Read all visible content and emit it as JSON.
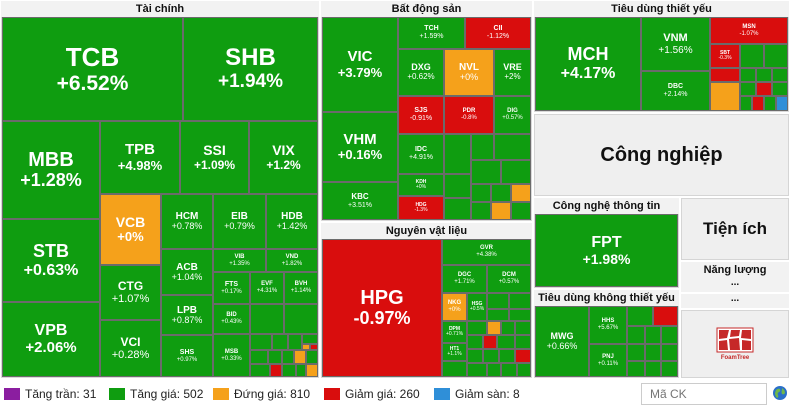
{
  "sectors": {
    "finance": {
      "title": "Tài chính",
      "tiles": [
        {
          "sym": "TCB",
          "chg": "+6.52%"
        },
        {
          "sym": "SHB",
          "chg": "+1.94%"
        },
        {
          "sym": "MBB",
          "chg": "+1.28%"
        },
        {
          "sym": "TPB",
          "chg": "+4.98%"
        },
        {
          "sym": "SSI",
          "chg": "+1.09%"
        },
        {
          "sym": "VIX",
          "chg": "+1.2%"
        },
        {
          "sym": "STB",
          "chg": "+0.63%"
        },
        {
          "sym": "VCB",
          "chg": "+0%"
        },
        {
          "sym": "HCM",
          "chg": "+0.78%"
        },
        {
          "sym": "EIB",
          "chg": "+0.79%"
        },
        {
          "sym": "HDB",
          "chg": "+1.42%"
        },
        {
          "sym": "CTG",
          "chg": "+1.07%"
        },
        {
          "sym": "ACB",
          "chg": "+1.04%"
        },
        {
          "sym": "VIB",
          "chg": "+1.35%"
        },
        {
          "sym": "VND",
          "chg": "+1.82%"
        },
        {
          "sym": "FTS",
          "chg": "+0.17%"
        },
        {
          "sym": "EVF",
          "chg": "+4.31%"
        },
        {
          "sym": "BVH",
          "chg": "+1.14%"
        },
        {
          "sym": "VPB",
          "chg": "+2.06%"
        },
        {
          "sym": "LPB",
          "chg": "+0.87%"
        },
        {
          "sym": "BID",
          "chg": "+0.43%"
        },
        {
          "sym": "VCI",
          "chg": "+0.28%"
        },
        {
          "sym": "SHS",
          "chg": "+0.97%"
        },
        {
          "sym": "MSB",
          "chg": "+0.33%"
        }
      ]
    },
    "real_estate": {
      "title": "Bất động sản",
      "tiles": [
        {
          "sym": "VIC",
          "chg": "+3.79%"
        },
        {
          "sym": "TCH",
          "chg": "+1.59%"
        },
        {
          "sym": "CII",
          "chg": "-1.12%"
        },
        {
          "sym": "DXG",
          "chg": "+0.62%"
        },
        {
          "sym": "NVL",
          "chg": "+0%"
        },
        {
          "sym": "VRE",
          "chg": "+2%"
        },
        {
          "sym": "VHM",
          "chg": "+0.16%"
        },
        {
          "sym": "SJS",
          "chg": "-0.91%"
        },
        {
          "sym": "PDR",
          "chg": "-0.8%"
        },
        {
          "sym": "DIG",
          "chg": "+0.57%"
        },
        {
          "sym": "IDC",
          "chg": "+4.91%"
        },
        {
          "sym": "KBC",
          "chg": "+3.51%"
        },
        {
          "sym": "KDH",
          "chg": "+0%"
        },
        {
          "sym": "HDG",
          "chg": "-1.3%"
        }
      ]
    },
    "staples": {
      "title": "Tiêu dùng thiết yếu",
      "tiles": [
        {
          "sym": "MCH",
          "chg": "+4.17%"
        },
        {
          "sym": "VNM",
          "chg": "+1.56%"
        },
        {
          "sym": "MSN",
          "chg": "-1.07%"
        },
        {
          "sym": "DBC",
          "chg": "+2.14%"
        },
        {
          "sym": "SBT",
          "chg": "-0.3%"
        }
      ]
    },
    "industrials": {
      "title": "Công nghiệp"
    },
    "materials": {
      "title": "Nguyên vật liệu",
      "tiles": [
        {
          "sym": "HPG",
          "chg": "-0.97%"
        },
        {
          "sym": "GVR",
          "chg": "+4.38%"
        },
        {
          "sym": "DGC",
          "chg": "+1.71%"
        },
        {
          "sym": "DCM",
          "chg": "+0.57%"
        },
        {
          "sym": "NKG",
          "chg": "+0%"
        },
        {
          "sym": "HSG",
          "chg": "+0.5%"
        },
        {
          "sym": "DPM",
          "chg": "+0.71%"
        },
        {
          "sym": "HT1",
          "chg": "+1.1%"
        }
      ]
    },
    "it": {
      "title": "Công nghệ thông tin",
      "tiles": [
        {
          "sym": "FPT",
          "chg": "+1.98%"
        }
      ]
    },
    "utilities": {
      "title": "Tiện ích"
    },
    "energy": {
      "title": "Năng lượng",
      "more": "..."
    },
    "discretionary": {
      "title": "Tiêu dùng không thiết yếu",
      "tiles": [
        {
          "sym": "MWG",
          "chg": "+0.66%"
        },
        {
          "sym": "HHS",
          "chg": "+5.67%"
        },
        {
          "sym": "PNJ",
          "chg": "+0.11%"
        }
      ]
    },
    "extra": {
      "more": "..."
    }
  },
  "logo": {
    "text": "FoamTree"
  },
  "legend": [
    {
      "label": "Tăng trần: 31",
      "color": "#8b1ea0"
    },
    {
      "label": "Tăng giá: 502",
      "color": "#0f9d10"
    },
    {
      "label": "Đứng giá: 810",
      "color": "#f5a11b"
    },
    {
      "label": "Giảm giá: 260",
      "color": "#d90d0d"
    },
    {
      "label": "Giảm sàn: 8",
      "color": "#2f8fd8"
    }
  ],
  "search": {
    "placeholder": "Mã CK"
  }
}
